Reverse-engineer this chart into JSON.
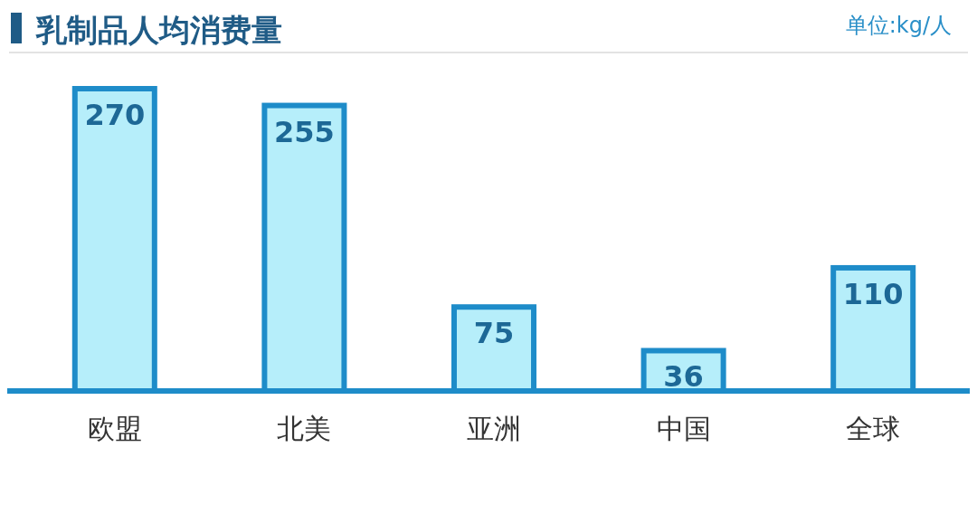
{
  "chart_data": {
    "type": "bar",
    "title": "乳制品人均消费量",
    "categories": [
      "欧盟",
      "北美",
      "亚洲",
      "中国",
      "全球"
    ],
    "values": [
      270,
      255,
      75,
      36,
      110
    ],
    "color": "#b6eefa",
    "data_labels": true,
    "annotations": [
      "单位:kg/人"
    ]
  }
}
